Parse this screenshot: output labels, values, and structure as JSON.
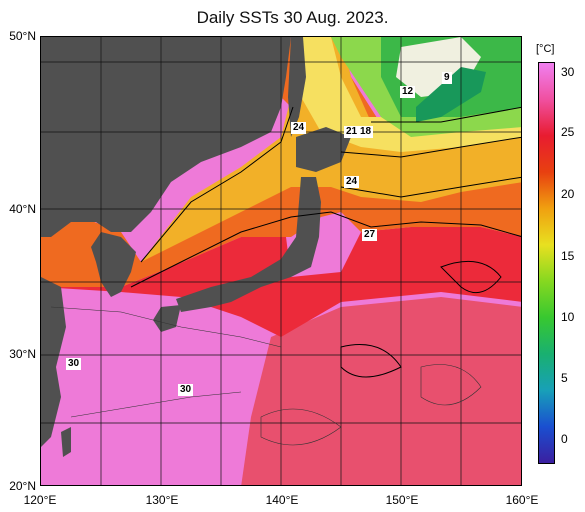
{
  "title": "Daily SSTs 30 Aug. 2023.",
  "y_axis_labels": [
    "50°N",
    "40°N",
    "30°N",
    "20°N"
  ],
  "x_axis_labels": [
    "120°E",
    "130°E",
    "140°E",
    "150°E",
    "160°E"
  ],
  "colorbar": {
    "unit": "[°C]",
    "ticks": [
      "30",
      "25",
      "20",
      "15",
      "10",
      "5",
      "0"
    ],
    "range": [
      -2,
      31
    ],
    "colors": [
      "#3b1fa0",
      "#1a4fd0",
      "#18a0b8",
      "#19b070",
      "#38c830",
      "#86d820",
      "#e8e020",
      "#f0a010",
      "#e84010",
      "#e81c30",
      "#f050a0",
      "#f080f0"
    ]
  },
  "contour_labels": {
    "l9": "9",
    "l12": "12",
    "l24a": "24",
    "l21": "21",
    "l18": "18",
    "l24b": "24",
    "l27": "27",
    "l30a": "30",
    "l30b": "30"
  },
  "colors": {
    "land": "#505050",
    "warm": "#ee78d8",
    "hot": "#ec2440",
    "mid": "#f0b020",
    "cool": "#1fa050"
  }
}
